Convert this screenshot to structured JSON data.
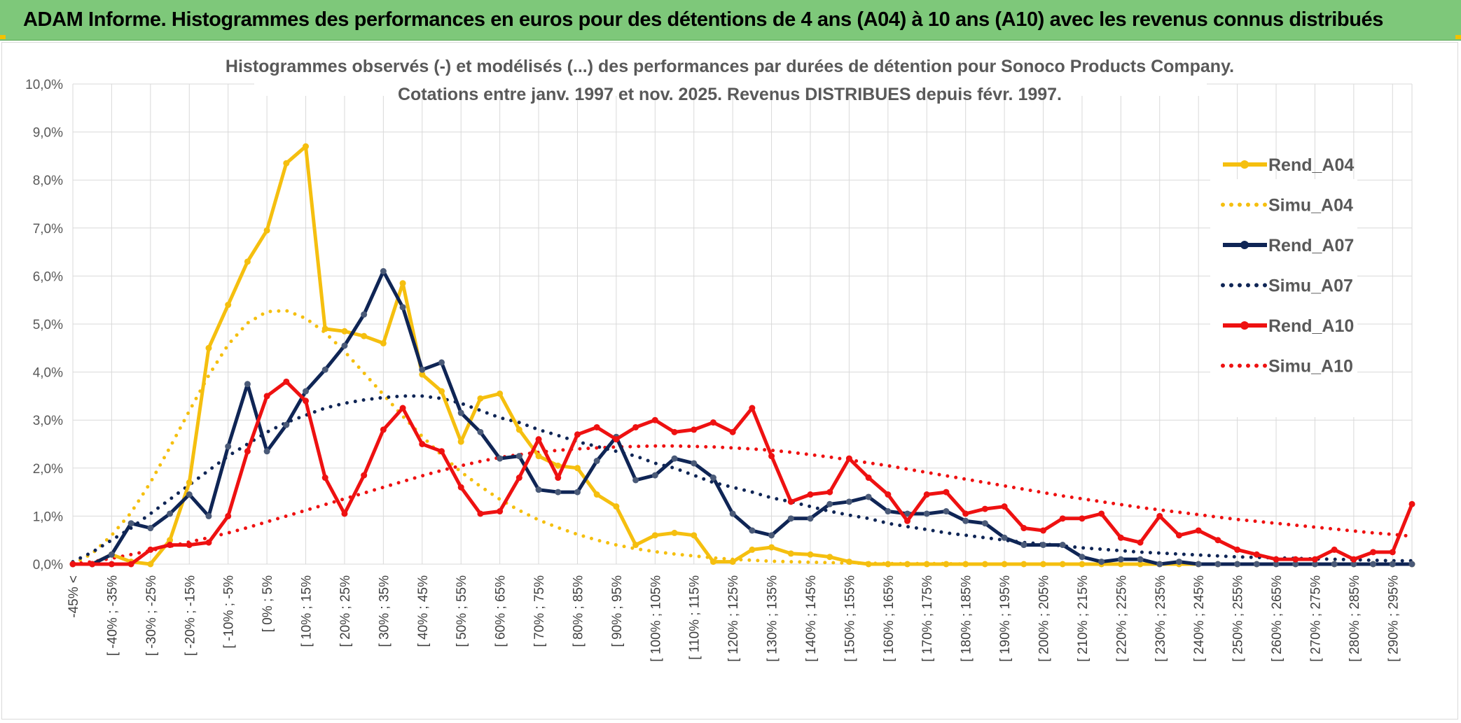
{
  "banner": {
    "title": "ADAM Informe. Histogrammes des performances en euros pour des détentions de 4 ans (A04) à 10 ans (A10) avec les revenus connus distribués"
  },
  "colors": {
    "banner_bg": "#7ec87a",
    "A04": "#f5bf0f",
    "A07": "#0f2555",
    "A10": "#ee1111"
  },
  "chart_data": {
    "type": "line",
    "title": "Histogrammes observés (-) et modélisés (...) des performances par durées de détention pour Sonoco Products Company.",
    "subtitle": "Cotations entre janv. 1997 et nov. 2025. Revenus DISTRIBUES depuis févr. 1997.",
    "ylim": [
      0,
      10
    ],
    "yticks": [
      0,
      1,
      2,
      3,
      4,
      5,
      6,
      7,
      8,
      9,
      10
    ],
    "ytick_labels": [
      "0,0%",
      "1,0%",
      "2,0%",
      "3,0%",
      "4,0%",
      "5,0%",
      "6,0%",
      "7,0%",
      "8,0%",
      "9,0%",
      "10,0%"
    ],
    "grid": true,
    "legend_position": "right",
    "x_count": 70,
    "xtick_labels": [
      "-45% <",
      "[ -40% ; -35%",
      "[ -30% ; -25%",
      "[ -20% ; -15%",
      "[ -10% ; -5%",
      "[ 0% ; 5%",
      "[ 10% ; 15%",
      "[ 20% ; 25%",
      "[ 30% ; 35%",
      "[ 40% ; 45%",
      "[ 50% ; 55%",
      "[ 60% ; 65%",
      "[ 70% ; 75%",
      "[ 80% ; 85%",
      "[ 90% ; 95%",
      "[ 100% ; 105%",
      "[ 110% ; 115%",
      "[ 120% ; 125%",
      "[ 130% ; 135%",
      "[ 140% ; 145%",
      "[ 150% ; 155%",
      "[ 160% ; 165%",
      "[ 170% ; 175%",
      "[ 180% ; 185%",
      "[ 190% ; 195%",
      "[ 200% ; 205%",
      "[ 210% ; 215%",
      "[ 220% ; 225%",
      "[ 230% ; 235%",
      "[ 240% ; 245%",
      "[ 250% ; 255%",
      "[ 260% ; 265%",
      "[ 270% ; 275%",
      "[ 280% ; 285%",
      "[ 290% ; 295%"
    ],
    "series": [
      {
        "name": "Rend_A04",
        "style": "solid",
        "color": "#f5bf0f",
        "values": [
          0,
          0,
          0.2,
          0.05,
          0,
          0.5,
          1.7,
          4.5,
          5.4,
          6.3,
          6.95,
          8.35,
          8.7,
          4.9,
          4.85,
          4.75,
          4.6,
          5.85,
          3.95,
          3.6,
          2.55,
          3.45,
          3.55,
          2.8,
          2.25,
          2.05,
          2.0,
          1.45,
          1.2,
          0.4,
          0.6,
          0.65,
          0.6,
          0.05,
          0.05,
          0.3,
          0.35,
          0.22,
          0.2,
          0.15,
          0.05,
          0,
          0,
          0,
          0,
          0,
          0,
          0,
          0,
          0,
          0,
          0,
          0,
          0,
          0,
          0,
          0,
          0,
          0,
          0,
          0,
          0,
          0,
          0,
          0,
          0,
          0,
          0,
          0,
          0
        ]
      },
      {
        "name": "Simu_A04",
        "style": "dotted",
        "color": "#f5bf0f",
        "values": [
          0.0,
          0.22,
          0.6,
          1.07,
          1.7,
          2.43,
          3.19,
          3.93,
          4.57,
          5.02,
          5.26,
          5.28,
          5.12,
          4.82,
          4.43,
          3.98,
          3.53,
          3.08,
          2.66,
          2.27,
          1.92,
          1.62,
          1.35,
          1.12,
          0.92,
          0.76,
          0.62,
          0.5,
          0.4,
          0.32,
          0.26,
          0.21,
          0.17,
          0.13,
          0.1,
          0.08,
          0.06,
          0.05,
          0.04,
          0.03,
          0.02,
          0.02,
          0.01,
          0.01,
          0.01,
          0.01,
          0,
          0,
          0,
          0,
          0,
          0,
          0,
          0,
          0,
          0,
          0,
          0,
          0,
          0,
          0,
          0,
          0,
          0,
          0,
          0,
          0,
          0,
          0,
          0
        ]
      },
      {
        "name": "Rend_A07",
        "style": "solid",
        "color": "#0f2555",
        "values": [
          0,
          0,
          0.2,
          0.85,
          0.75,
          1.05,
          1.45,
          1.0,
          2.45,
          3.75,
          2.35,
          2.9,
          3.6,
          4.05,
          4.55,
          5.2,
          6.1,
          5.35,
          4.05,
          4.2,
          3.15,
          2.75,
          2.2,
          2.25,
          1.55,
          1.5,
          1.5,
          2.15,
          2.65,
          1.75,
          1.85,
          2.2,
          2.1,
          1.8,
          1.05,
          0.7,
          0.6,
          0.95,
          0.95,
          1.25,
          1.3,
          1.4,
          1.1,
          1.05,
          1.05,
          1.1,
          0.9,
          0.85,
          0.55,
          0.4,
          0.4,
          0.4,
          0.15,
          0.05,
          0.1,
          0.1,
          0,
          0.05,
          0,
          0,
          0,
          0,
          0,
          0,
          0,
          0,
          0,
          0,
          0,
          0
        ]
      },
      {
        "name": "Simu_A07",
        "style": "dotted",
        "color": "#0f2555",
        "values": [
          0.05,
          0.25,
          0.5,
          0.75,
          1.05,
          1.35,
          1.65,
          1.95,
          2.25,
          2.5,
          2.75,
          2.95,
          3.1,
          3.25,
          3.35,
          3.42,
          3.47,
          3.5,
          3.5,
          3.45,
          3.35,
          3.2,
          3.05,
          2.95,
          2.8,
          2.68,
          2.55,
          2.45,
          2.35,
          2.25,
          2.1,
          2.0,
          1.85,
          1.7,
          1.6,
          1.5,
          1.38,
          1.3,
          1.2,
          1.1,
          1.02,
          0.95,
          0.85,
          0.78,
          0.72,
          0.65,
          0.6,
          0.55,
          0.5,
          0.45,
          0.42,
          0.38,
          0.34,
          0.31,
          0.28,
          0.25,
          0.23,
          0.21,
          0.19,
          0.17,
          0.15,
          0.14,
          0.13,
          0.12,
          0.11,
          0.1,
          0.09,
          0.08,
          0.07,
          0.07
        ]
      },
      {
        "name": "Rend_A10",
        "style": "solid",
        "color": "#ee1111",
        "values": [
          0,
          0,
          0,
          0,
          0.3,
          0.4,
          0.4,
          0.45,
          1.0,
          2.35,
          3.5,
          3.8,
          3.4,
          1.8,
          1.05,
          1.85,
          2.8,
          3.25,
          2.5,
          2.35,
          1.6,
          1.05,
          1.1,
          1.8,
          2.6,
          1.8,
          2.7,
          2.85,
          2.6,
          2.85,
          3.0,
          2.75,
          2.8,
          2.95,
          2.75,
          3.25,
          2.25,
          1.3,
          1.45,
          1.5,
          2.2,
          1.8,
          1.45,
          0.9,
          1.45,
          1.5,
          1.05,
          1.15,
          1.2,
          0.75,
          0.7,
          0.95,
          0.95,
          1.05,
          0.55,
          0.45,
          1.0,
          0.6,
          0.7,
          0.5,
          0.3,
          0.2,
          0.1,
          0.1,
          0.1,
          0.3,
          0.1,
          0.25,
          0.25,
          1.25
        ]
      },
      {
        "name": "Simu_A10",
        "style": "dotted",
        "color": "#ee1111",
        "values": [
          0.0,
          0.05,
          0.12,
          0.2,
          0.28,
          0.37,
          0.46,
          0.55,
          0.65,
          0.76,
          0.88,
          1.0,
          1.12,
          1.24,
          1.36,
          1.48,
          1.6,
          1.72,
          1.84,
          1.95,
          2.05,
          2.14,
          2.22,
          2.28,
          2.33,
          2.37,
          2.4,
          2.42,
          2.44,
          2.45,
          2.46,
          2.46,
          2.45,
          2.44,
          2.42,
          2.4,
          2.37,
          2.33,
          2.28,
          2.23,
          2.17,
          2.11,
          2.05,
          1.98,
          1.91,
          1.84,
          1.77,
          1.7,
          1.63,
          1.56,
          1.49,
          1.42,
          1.36,
          1.3,
          1.24,
          1.18,
          1.13,
          1.08,
          1.03,
          0.98,
          0.93,
          0.89,
          0.85,
          0.81,
          0.77,
          0.73,
          0.69,
          0.65,
          0.62,
          0.58
        ]
      }
    ]
  }
}
